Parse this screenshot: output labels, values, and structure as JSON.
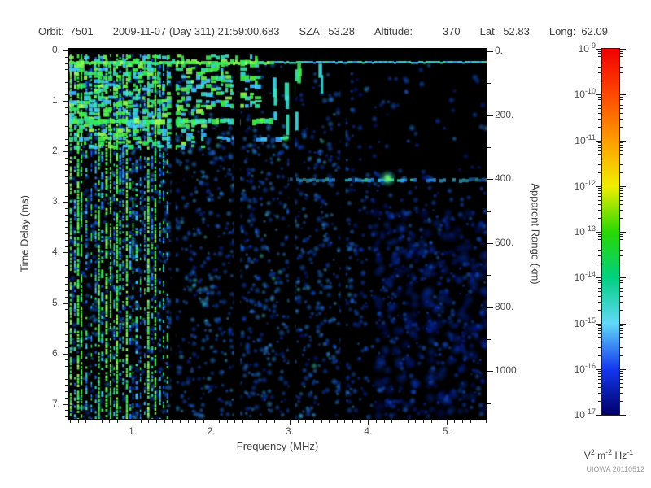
{
  "header": {
    "fields": [
      {
        "label": "Orbit:",
        "value": "7501"
      },
      {
        "label": "",
        "value": "2009-11-07 (Day 311) 21:59:00.683"
      },
      {
        "label": "SZA:",
        "value": "53.28"
      },
      {
        "label": "Altitude:",
        "value": "370"
      },
      {
        "label": "Lat:",
        "value": "52.83"
      },
      {
        "label": "Long:",
        "value": "62.09"
      }
    ]
  },
  "watermark": "UIOWA 20110512",
  "chart_data": {
    "type": "heatmap",
    "subtype": "radar-sounder-ionogram-spectrogram",
    "xlabel": "Frequency (MHz)",
    "ylabel_left": "Time Delay (ms)",
    "ylabel_right": "Apparent Range (km)",
    "x_range_mhz": [
      0.19,
      5.51
    ],
    "x_major_ticks": [
      1,
      2,
      3,
      4,
      5
    ],
    "x_minor_step_mhz": 0.1,
    "y_left_range_ms": [
      0,
      7.3
    ],
    "y_left_major_ticks": [
      0,
      1,
      2,
      3,
      4,
      5,
      6,
      7
    ],
    "y_left_minor_step_ms": 0.125,
    "y_right_range_km": [
      0,
      1150
    ],
    "y_right_major_ticks": [
      0,
      200,
      400,
      600,
      800,
      1000
    ],
    "y_right_minor_ticks": [
      100,
      300,
      500,
      700,
      900,
      1100
    ],
    "grid": false,
    "background": "#000000",
    "colorbar": {
      "mantissa_base": "10",
      "decade_exponents": [
        "-9",
        "-10",
        "-11",
        "-12",
        "-13",
        "-14",
        "-15",
        "-16",
        "-17"
      ],
      "colors_top_to_bottom": [
        "#f00000",
        "#ff4800",
        "#ff9c00",
        "#f2ee00",
        "#28d800",
        "#00d080",
        "#60d8f8",
        "#1438f0",
        "#000068"
      ],
      "unit_parts": [
        {
          "t": "V",
          "s": "2"
        },
        {
          "t": " m",
          "s": "-2"
        },
        {
          "t": " Hz",
          "s": "-1"
        }
      ]
    },
    "features": {
      "top_blank_ms": 0.08,
      "surface_echo": {
        "delay_ms": 0.21,
        "f_start_mhz": 0.19,
        "f_end_mhz": 5.51
      },
      "plasma_harmonic_stripes": {
        "f_min_mhz": 0.21,
        "f_max_mhz": 1.45,
        "hot_freqs_mhz": [
          0.21,
          0.32,
          0.45,
          0.66,
          0.92,
          1.31
        ]
      },
      "dense_echo_band": {
        "delay_max_ms": 1.9,
        "f_max_mhz": 2.6
      },
      "horizontal_band": {
        "delay_ms": 1.4,
        "f_start_mhz": 0.19,
        "f_end_mhz": 2.75
      },
      "cusp_line": {
        "delay_ms": 1.74,
        "f_start_mhz": 1.7,
        "f_end_mhz": 2.95
      },
      "ionosphere_trace": {
        "apparent_range_km": 400,
        "f_start_mhz": 3.0,
        "f_end_mhz": 5.51,
        "peak_f_mhz": 4.25
      },
      "dark_gap_freqs_mhz": [
        [
          1.52,
          5
        ],
        [
          2.33,
          8
        ],
        [
          3.03,
          7
        ],
        [
          3.68,
          6
        ]
      ],
      "noise_seed": 7
    }
  }
}
